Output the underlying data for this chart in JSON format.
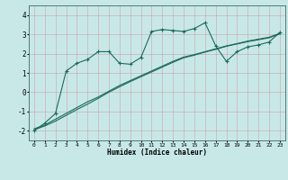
{
  "xlabel": "Humidex (Indice chaleur)",
  "bg_color": "#c8e8e8",
  "grid_color": "#d4909090",
  "line_color": "#1a6b5a",
  "xlim": [
    -0.5,
    23.5
  ],
  "ylim": [
    -2.5,
    4.5
  ],
  "xticks": [
    0,
    1,
    2,
    3,
    4,
    5,
    6,
    7,
    8,
    9,
    10,
    11,
    12,
    13,
    14,
    15,
    16,
    17,
    18,
    19,
    20,
    21,
    22,
    23
  ],
  "yticks": [
    -2,
    -1,
    0,
    1,
    2,
    3,
    4
  ],
  "series1_x": [
    0,
    1,
    2,
    3,
    4,
    5,
    6,
    7,
    8,
    9,
    10,
    11,
    12,
    13,
    14,
    15,
    16,
    17,
    18,
    19,
    20,
    21,
    22,
    23
  ],
  "series1_y": [
    -2.0,
    -1.6,
    -1.1,
    1.1,
    1.5,
    1.7,
    2.1,
    2.1,
    1.5,
    1.45,
    1.8,
    3.15,
    3.25,
    3.2,
    3.15,
    3.3,
    3.6,
    2.4,
    1.6,
    2.1,
    2.35,
    2.45,
    2.6,
    3.1
  ],
  "series2_x": [
    0,
    1,
    2,
    3,
    4,
    5,
    6,
    7,
    8,
    9,
    10,
    11,
    12,
    13,
    14,
    15,
    16,
    17,
    18,
    19,
    20,
    21,
    22,
    23
  ],
  "series2_y": [
    -1.9,
    -1.7,
    -1.4,
    -1.1,
    -0.8,
    -0.5,
    -0.25,
    0.05,
    0.35,
    0.6,
    0.85,
    1.1,
    1.35,
    1.6,
    1.82,
    1.95,
    2.1,
    2.25,
    2.4,
    2.52,
    2.65,
    2.75,
    2.85,
    3.05
  ],
  "series3_x": [
    0,
    1,
    2,
    3,
    4,
    5,
    6,
    7,
    8,
    9,
    10,
    11,
    12,
    13,
    14,
    15,
    16,
    17,
    18,
    19,
    20,
    21,
    22,
    23
  ],
  "series3_y": [
    -1.95,
    -1.75,
    -1.5,
    -1.2,
    -0.9,
    -0.62,
    -0.32,
    0.0,
    0.28,
    0.55,
    0.8,
    1.05,
    1.3,
    1.55,
    1.78,
    1.92,
    2.08,
    2.22,
    2.38,
    2.5,
    2.62,
    2.72,
    2.82,
    3.02
  ]
}
